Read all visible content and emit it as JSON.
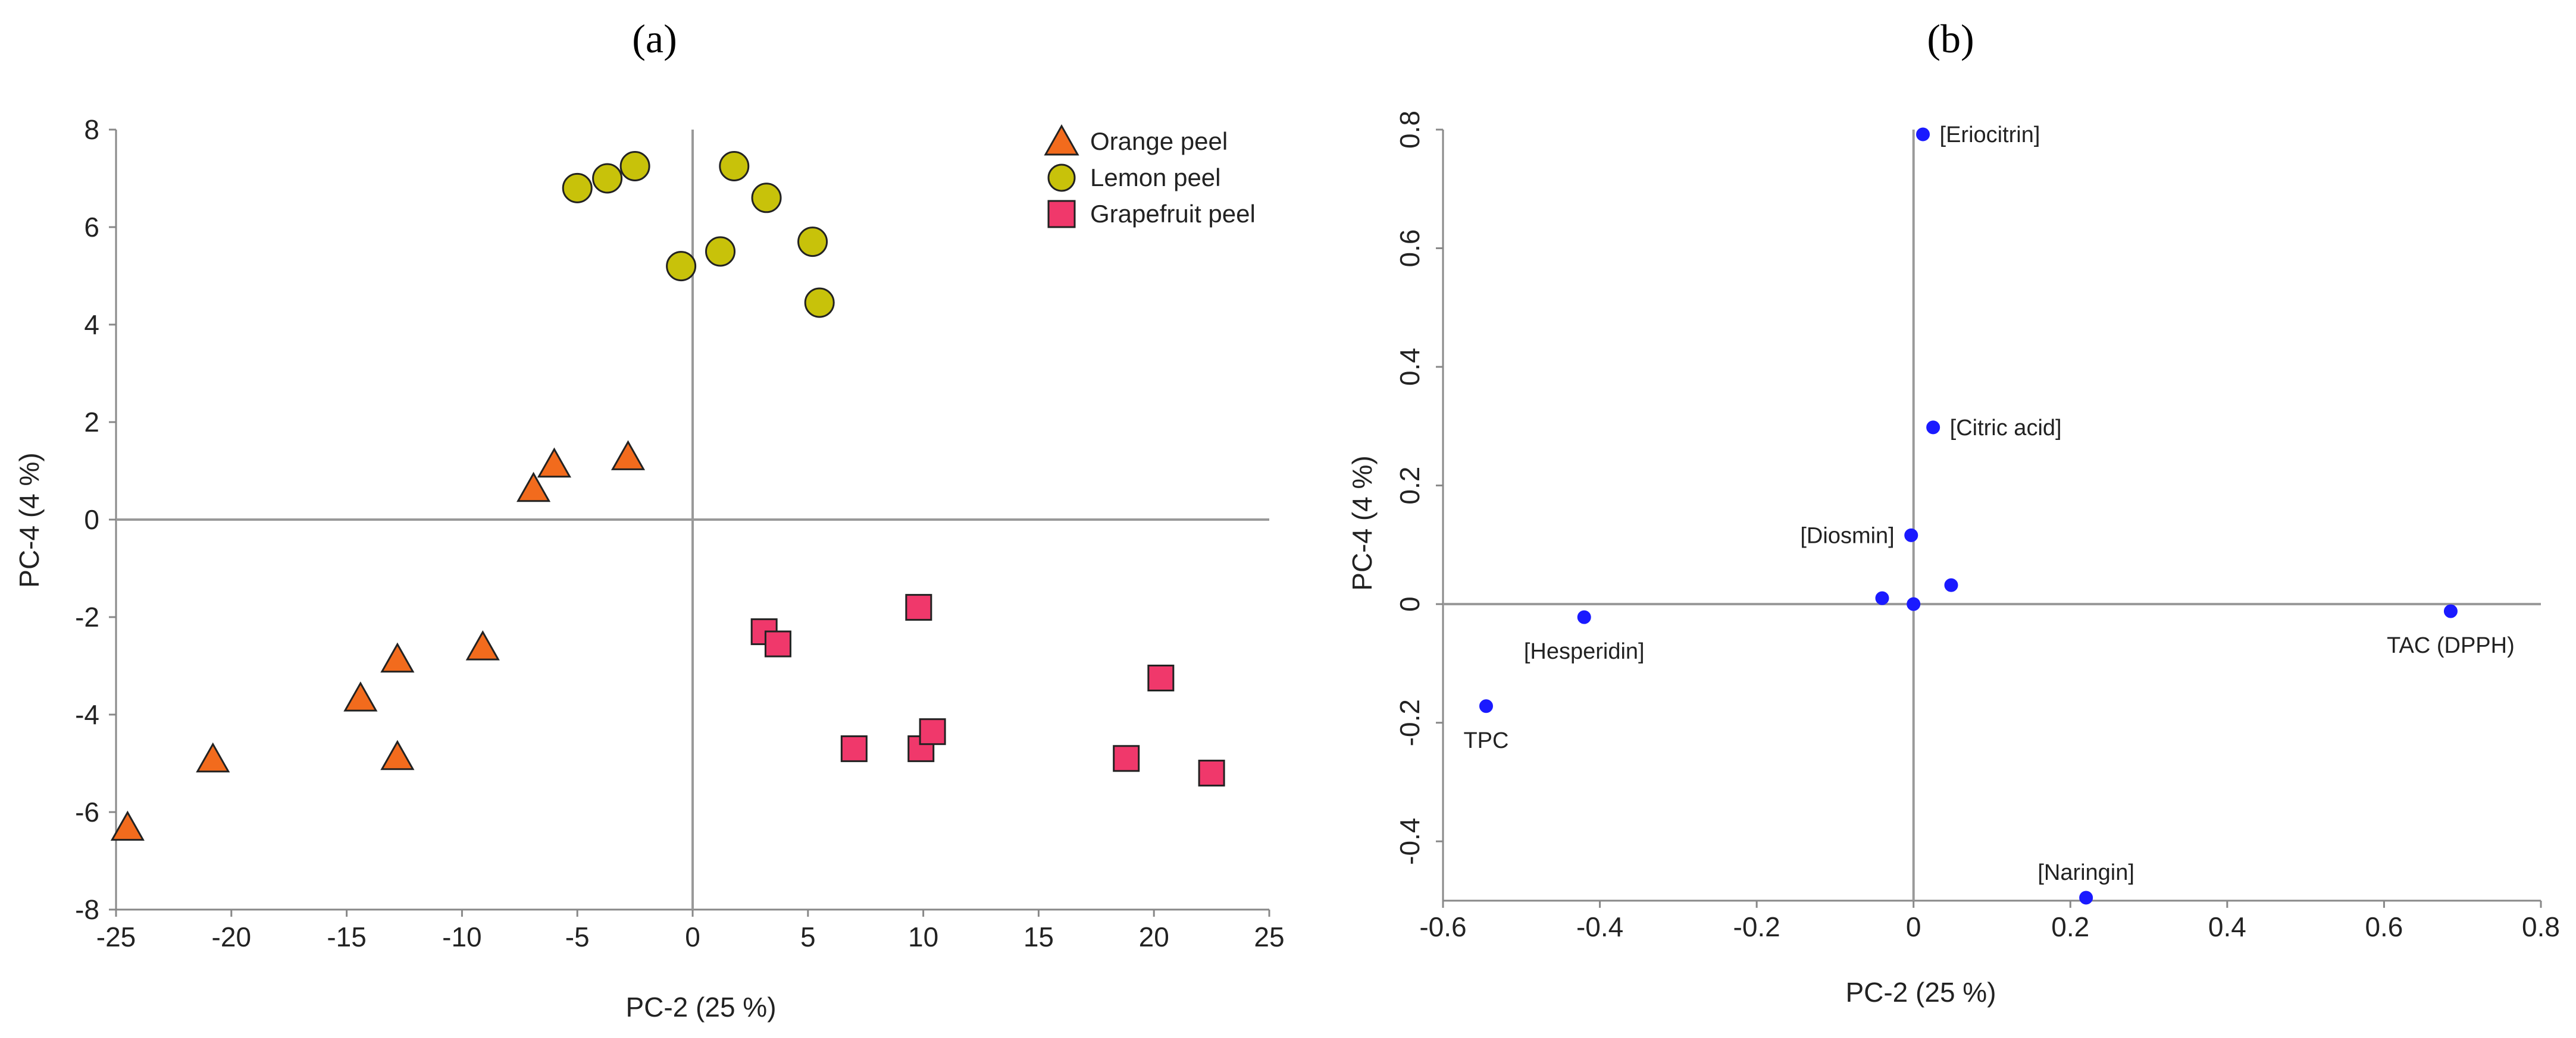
{
  "chart_data": [
    {
      "type": "scatter",
      "panel_label": "(a)",
      "xlabel": "PC-2 (25 %)",
      "ylabel": "PC-4 (4 %)",
      "xlim": [
        -25,
        25
      ],
      "ylim": [
        -8,
        8
      ],
      "xticks": [
        -25,
        -20,
        -15,
        -10,
        -5,
        0,
        5,
        10,
        15,
        20,
        25
      ],
      "yticks": [
        -8,
        -6,
        -4,
        -2,
        0,
        2,
        4,
        6,
        8
      ],
      "legend_position": "top-right",
      "series": [
        {
          "name": "Orange peel",
          "marker": "triangle",
          "color": "#f26b1d",
          "points": [
            [
              -24.5,
              -6.3
            ],
            [
              -20.8,
              -4.9
            ],
            [
              -14.4,
              -3.65
            ],
            [
              -12.8,
              -2.85
            ],
            [
              -12.8,
              -4.85
            ],
            [
              -9.1,
              -2.6
            ],
            [
              -6.9,
              0.65
            ],
            [
              -6.0,
              1.15
            ],
            [
              -2.8,
              1.3
            ]
          ]
        },
        {
          "name": "Lemon peel",
          "marker": "circle",
          "color": "#c8c20a",
          "points": [
            [
              -5.0,
              6.8
            ],
            [
              -3.7,
              7.0
            ],
            [
              -2.5,
              7.25
            ],
            [
              -0.5,
              5.2
            ],
            [
              1.2,
              5.5
            ],
            [
              1.8,
              7.25
            ],
            [
              3.2,
              6.6
            ],
            [
              5.2,
              5.7
            ],
            [
              5.5,
              4.45
            ]
          ]
        },
        {
          "name": "Grapefruit peel",
          "marker": "square",
          "color": "#f0386b",
          "points": [
            [
              3.1,
              -2.3
            ],
            [
              3.7,
              -2.55
            ],
            [
              7.0,
              -4.7
            ],
            [
              9.8,
              -1.8
            ],
            [
              9.9,
              -4.7
            ],
            [
              10.4,
              -4.35
            ],
            [
              18.8,
              -4.9
            ],
            [
              20.3,
              -3.25
            ],
            [
              22.5,
              -5.2
            ]
          ]
        }
      ]
    },
    {
      "type": "scatter",
      "panel_label": "(b)",
      "xlabel": "PC-2 (25 %)",
      "ylabel": "PC-4 (4 %)",
      "xlim": [
        -0.6,
        0.8
      ],
      "ylim": [
        -0.5,
        0.8
      ],
      "xticks": [
        -0.6,
        -0.4,
        -0.2,
        0,
        0.2,
        0.4,
        0.6,
        0.8
      ],
      "yticks": [
        -0.4,
        -0.2,
        0,
        0.2,
        0.4,
        0.6,
        0.8
      ],
      "color": "#1a1aff",
      "points": [
        {
          "x": 0.012,
          "y": 0.792,
          "label": "[Eriocitrin]",
          "label_pos": "right"
        },
        {
          "x": 0.025,
          "y": 0.298,
          "label": "[Citric acid]",
          "label_pos": "right"
        },
        {
          "x": -0.003,
          "y": 0.116,
          "label": "[Diosmin]",
          "label_pos": "left"
        },
        {
          "x": -0.04,
          "y": 0.01,
          "label": "",
          "label_pos": "none"
        },
        {
          "x": 0.0,
          "y": 0.0,
          "label": "",
          "label_pos": "none"
        },
        {
          "x": 0.048,
          "y": 0.032,
          "label": "",
          "label_pos": "none"
        },
        {
          "x": -0.42,
          "y": -0.022,
          "label": "[Hesperidin]",
          "label_pos": "below"
        },
        {
          "x": -0.545,
          "y": -0.172,
          "label": "TPC",
          "label_pos": "below"
        },
        {
          "x": 0.685,
          "y": -0.012,
          "label": "TAC (DPPH)",
          "label_pos": "below"
        },
        {
          "x": 0.22,
          "y": -0.495,
          "label": "[Naringin]",
          "label_pos": "above"
        }
      ]
    }
  ]
}
